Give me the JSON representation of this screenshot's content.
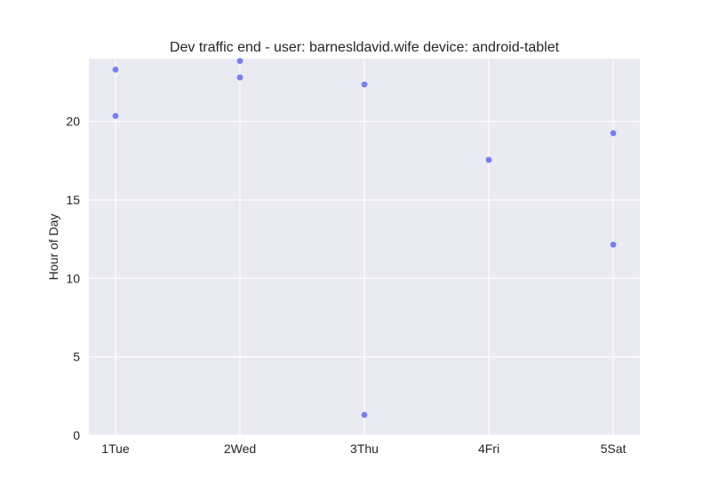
{
  "chart_data": {
    "type": "scatter",
    "title": "Dev traffic end - user: barnesldavid.wife device: android-tablet",
    "xlabel": "",
    "ylabel": "Hour of Day",
    "categories": [
      "1Tue",
      "2Wed",
      "3Thu",
      "4Fri",
      "5Sat"
    ],
    "ylim": [
      0,
      24
    ],
    "yticks": [
      0,
      5,
      10,
      15,
      20
    ],
    "grid": true,
    "series": [
      {
        "points": [
          {
            "x": "1Tue",
            "y": 23.3
          },
          {
            "x": "1Tue",
            "y": 20.35
          },
          {
            "x": "2Wed",
            "y": 23.85
          },
          {
            "x": "2Wed",
            "y": 22.8
          },
          {
            "x": "3Thu",
            "y": 22.35
          },
          {
            "x": "3Thu",
            "y": 1.3
          },
          {
            "x": "4Fri",
            "y": 17.55
          },
          {
            "x": "5Sat",
            "y": 19.25
          },
          {
            "x": "5Sat",
            "y": 12.15
          }
        ]
      }
    ]
  },
  "colors": {
    "background": "#ffffff",
    "plot_area": "#eaeaf2",
    "grid": "#ffffff",
    "point": "#6b73f0",
    "text": "#262626"
  }
}
